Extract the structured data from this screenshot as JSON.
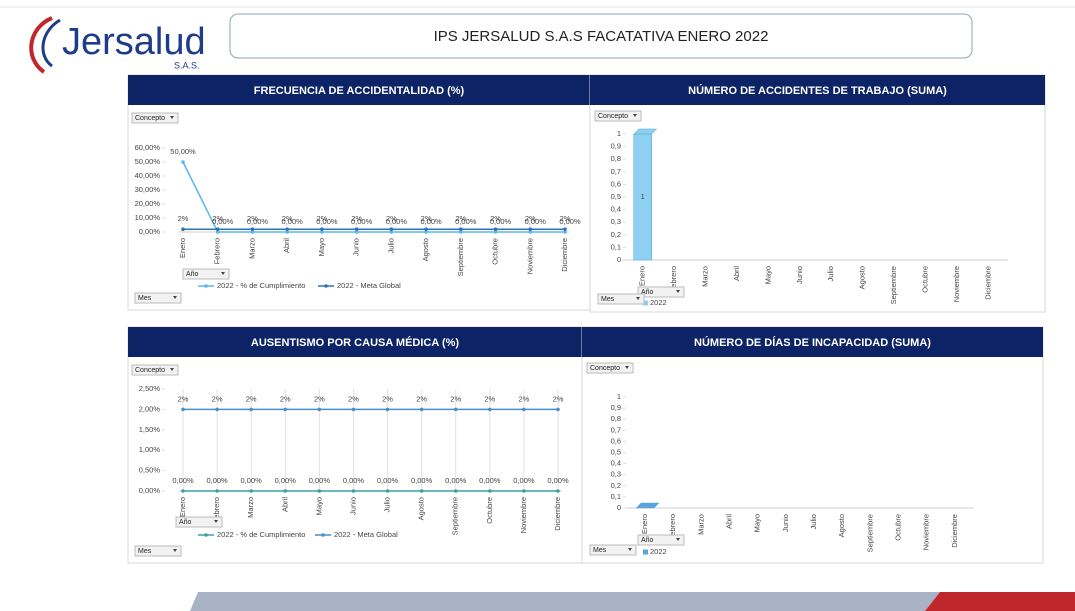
{
  "logo": {
    "name": "Jersalud",
    "suffix": "S.A.S."
  },
  "header": {
    "title": "IPS JERSALUD S.A.S FACATATIVA  ENERO 2022"
  },
  "chart_data": [
    {
      "type": "line",
      "title": "FRECUENCIA DE ACCIDENTALIDAD (%)",
      "filters": [
        "Concepto",
        "Año",
        "Mes"
      ],
      "categories": [
        "Enero",
        "Febrero",
        "Marzo",
        "Abril",
        "Mayo",
        "Junio",
        "Julio",
        "Agosto",
        "Septiembre",
        "Octubre",
        "Noviembre",
        "Diciembre"
      ],
      "series": [
        {
          "name": "2022 - % de Cumplimiento",
          "color": "#5bb8e8",
          "values": [
            50,
            0,
            0,
            0,
            0,
            0,
            0,
            0,
            0,
            0,
            0,
            0
          ],
          "value_labels": [
            "50,00%",
            "0,00%",
            "0,00%",
            "0,00%",
            "0,00%",
            "0,00%",
            "0,00%",
            "0,00%",
            "0,00%",
            "0,00%",
            "0,00%",
            "0,00%"
          ]
        },
        {
          "name": "2022 - Meta Global",
          "color": "#2e75b6",
          "values": [
            2,
            2,
            2,
            2,
            2,
            2,
            2,
            2,
            2,
            2,
            2,
            2
          ],
          "value_labels": [
            "2%",
            "2%",
            "2%",
            "2%",
            "2%",
            "2%",
            "2%",
            "2%",
            "2%",
            "2%",
            "2%",
            "2%"
          ]
        }
      ],
      "ylim": [
        0,
        60
      ],
      "yticks": [
        {
          "value": 0,
          "label": "0,00%"
        },
        {
          "value": 10,
          "label": "10,00%"
        },
        {
          "value": 20,
          "label": "20,00%"
        },
        {
          "value": 30,
          "label": "30,00%"
        },
        {
          "value": 40,
          "label": "40,00%"
        },
        {
          "value": 50,
          "label": "50,00%"
        },
        {
          "value": 60,
          "label": "60,00%"
        }
      ],
      "grid": false
    },
    {
      "type": "bar",
      "title": "NÚMERO DE ACCIDENTES DE TRABAJO  (SUMA)",
      "filters": [
        "Concepto",
        "Año",
        "Mes"
      ],
      "categories": [
        "Enero",
        "Febrero",
        "Marzo",
        "Abril",
        "Mayo",
        "Junio",
        "Julio",
        "Agosto",
        "Septiembre",
        "Octubre",
        "Noviembre",
        "Diciembre"
      ],
      "series": [
        {
          "name": "2022",
          "color": "#8ed0f0",
          "values": [
            1,
            null,
            null,
            null,
            null,
            null,
            null,
            null,
            null,
            null,
            null,
            null
          ]
        }
      ],
      "ylim": [
        0,
        1
      ],
      "yticks": [
        0,
        {
          "value": 0.1,
          "label": "0,1"
        },
        {
          "value": 0.2,
          "label": "0,2"
        },
        {
          "value": 0.3,
          "label": "0,3"
        },
        {
          "value": 0.4,
          "label": "0,4"
        },
        {
          "value": 0.5,
          "label": "0,5"
        },
        {
          "value": 0.6,
          "label": "0,6"
        },
        {
          "value": 0.7,
          "label": "0,7"
        },
        {
          "value": 0.8,
          "label": "0,8"
        },
        {
          "value": 0.9,
          "label": "0,9"
        },
        1
      ]
    },
    {
      "type": "line",
      "title": "AUSENTISMO POR CAUSA MÉDICA (%)",
      "filters": [
        "Concepto",
        "Año",
        "Mes"
      ],
      "categories": [
        "Enero",
        "Febrero",
        "Marzo",
        "Abril",
        "Mayo",
        "Junio",
        "Julio",
        "Agosto",
        "Septiembre",
        "Octubre",
        "Noviembre",
        "Diciembre"
      ],
      "series": [
        {
          "name": "2022 - % de Cumplimiento",
          "color": "#3aa0a8",
          "values": [
            0,
            0,
            0,
            0,
            0,
            0,
            0,
            0,
            0,
            0,
            0,
            0
          ],
          "value_labels": [
            "0,00%",
            "0,00%",
            "0,00%",
            "0,00%",
            "0,00%",
            "0,00%",
            "0,00%",
            "0,00%",
            "0,00%",
            "0,00%",
            "0,00%",
            "0,00%"
          ]
        },
        {
          "name": "2022 - Meta Global",
          "color": "#4a90c8",
          "values": [
            2,
            2,
            2,
            2,
            2,
            2,
            2,
            2,
            2,
            2,
            2,
            2
          ],
          "value_labels": [
            "2%",
            "2%",
            "2%",
            "2%",
            "2%",
            "2%",
            "2%",
            "2%",
            "2%",
            "2%",
            "2%",
            "2%"
          ]
        }
      ],
      "ylim": [
        0,
        2.5
      ],
      "yticks": [
        {
          "value": 0,
          "label": "0,00%"
        },
        {
          "value": 0.5,
          "label": "0,50%"
        },
        {
          "value": 1,
          "label": "1,00%"
        },
        {
          "value": 1.5,
          "label": "1,50%"
        },
        {
          "value": 2,
          "label": "2,00%"
        },
        {
          "value": 2.5,
          "label": "2,50%"
        }
      ],
      "grid": true
    },
    {
      "type": "bar",
      "title": "NÚMERO DE DÍAS DE INCAPACIDAD (SUMA)",
      "filters": [
        "Concepto",
        "Año",
        "Mes"
      ],
      "categories": [
        "Enero",
        "Febrero",
        "Marzo",
        "Abril",
        "Mayo",
        "Junio",
        "Julio",
        "Agosto",
        "Septiembre",
        "Octubre",
        "Noviembre",
        "Diciembre"
      ],
      "series": [
        {
          "name": "2022",
          "color": "#5aa6d8",
          "values": [
            0,
            null,
            null,
            null,
            null,
            null,
            null,
            null,
            null,
            null,
            null,
            null
          ]
        }
      ],
      "ylim": [
        0,
        1
      ],
      "yticks": [
        0,
        {
          "value": 0.1,
          "label": "0,1"
        },
        {
          "value": 0.2,
          "label": "0,2"
        },
        {
          "value": 0.3,
          "label": "0,3"
        },
        {
          "value": 0.4,
          "label": "0,4"
        },
        {
          "value": 0.5,
          "label": "0,5"
        },
        {
          "value": 0.6,
          "label": "0,6"
        },
        {
          "value": 0.7,
          "label": "0,7"
        },
        {
          "value": 0.8,
          "label": "0,8"
        },
        {
          "value": 0.9,
          "label": "0,9"
        },
        1
      ]
    }
  ]
}
